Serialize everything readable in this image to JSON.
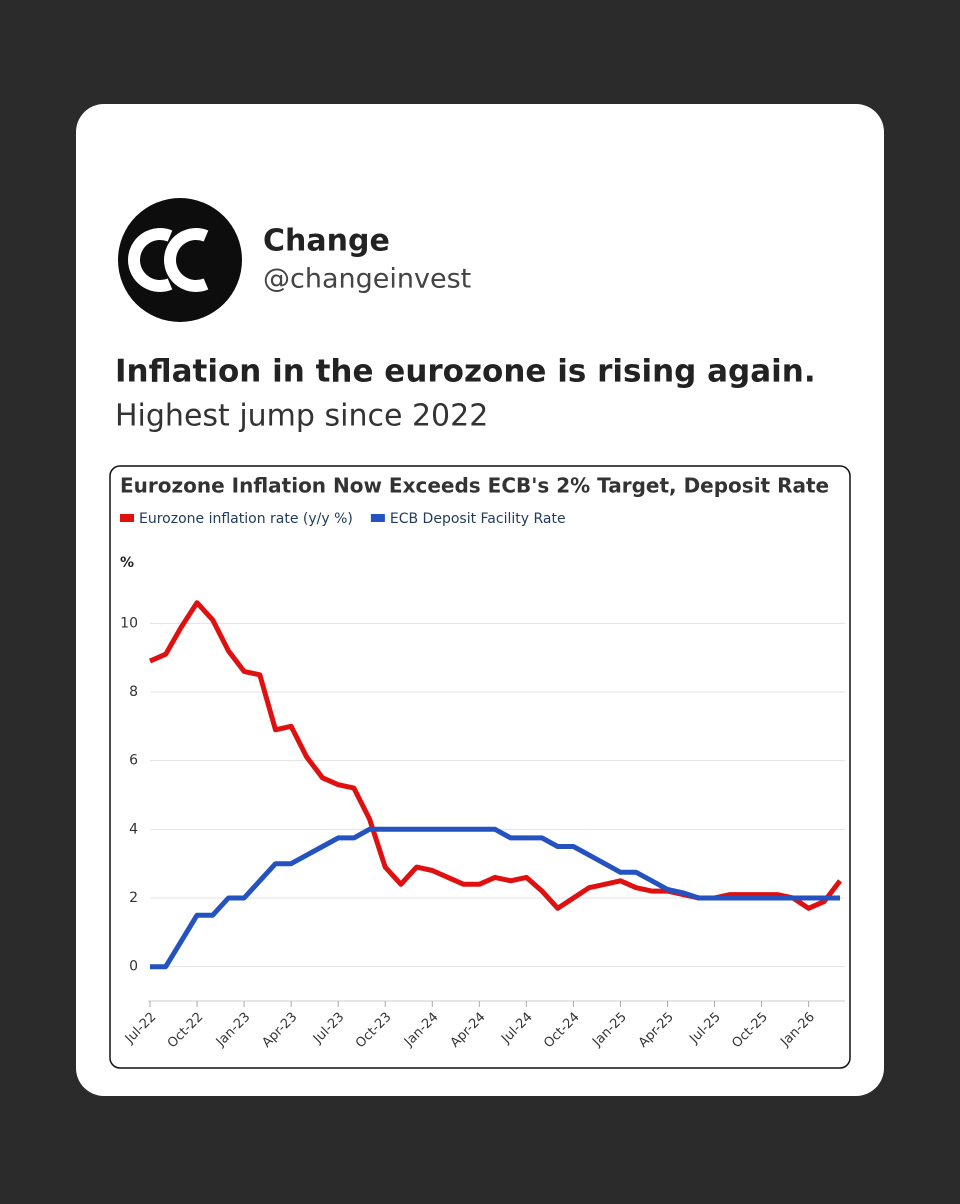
{
  "post": {
    "name": "Change",
    "handle": "@changeinvest",
    "headline": "Inflation in the eurozone is rising again.",
    "subline": "Highest jump since 2022"
  },
  "chart_data": {
    "type": "line",
    "title": "Eurozone Inflation Now Exceeds ECB's 2% Target, Deposit Rate",
    "y_label": "%",
    "categories": [
      "Jul-22",
      null,
      null,
      "Oct-22",
      null,
      null,
      "Jan-23",
      null,
      null,
      "Apr-23",
      null,
      null,
      "Jul-23",
      null,
      null,
      "Oct-23",
      null,
      null,
      "Jan-24",
      null,
      null,
      "Apr-24",
      null,
      null,
      "Jul-24",
      null,
      null,
      "Oct-24",
      null,
      null,
      "Jan-25",
      null,
      null,
      "Apr-25",
      null,
      null,
      "Jul-25",
      null,
      null,
      "Oct-25",
      null,
      null,
      "Jan-26",
      null,
      null
    ],
    "series": [
      {
        "name": "Eurozone inflation rate (y/y %)",
        "color": "#e01010",
        "values": [
          8.9,
          9.1,
          9.9,
          10.6,
          10.1,
          9.2,
          8.6,
          8.5,
          6.9,
          7.0,
          6.1,
          5.5,
          5.3,
          5.2,
          4.3,
          2.9,
          2.4,
          2.9,
          2.8,
          2.6,
          2.4,
          2.4,
          2.6,
          2.5,
          2.6,
          2.2,
          1.7,
          2.0,
          2.3,
          2.4,
          2.5,
          2.3,
          2.2,
          2.2,
          2.1,
          2.0,
          2.0,
          2.1,
          2.1,
          2.1,
          2.1,
          2.0,
          1.7,
          1.9,
          2.5
        ]
      },
      {
        "name": "ECB Deposit Facility Rate",
        "color": "#2452c0",
        "values": [
          0,
          0,
          0.75,
          1.5,
          1.5,
          2.0,
          2.0,
          2.5,
          3.0,
          3.0,
          3.25,
          3.5,
          3.75,
          3.75,
          4.0,
          4.0,
          4.0,
          4.0,
          4.0,
          4.0,
          4.0,
          4.0,
          4.0,
          3.75,
          3.75,
          3.75,
          3.5,
          3.5,
          3.25,
          3.0,
          2.75,
          2.75,
          2.5,
          2.25,
          2.15,
          2.0,
          2.0,
          2.0,
          2.0,
          2.0,
          2.0,
          2.0,
          2.0,
          2.0,
          2.0
        ]
      }
    ],
    "ylim": [
      -1,
      11
    ],
    "yticks": [
      0,
      2,
      4,
      6,
      8,
      10
    ],
    "grid": true
  }
}
